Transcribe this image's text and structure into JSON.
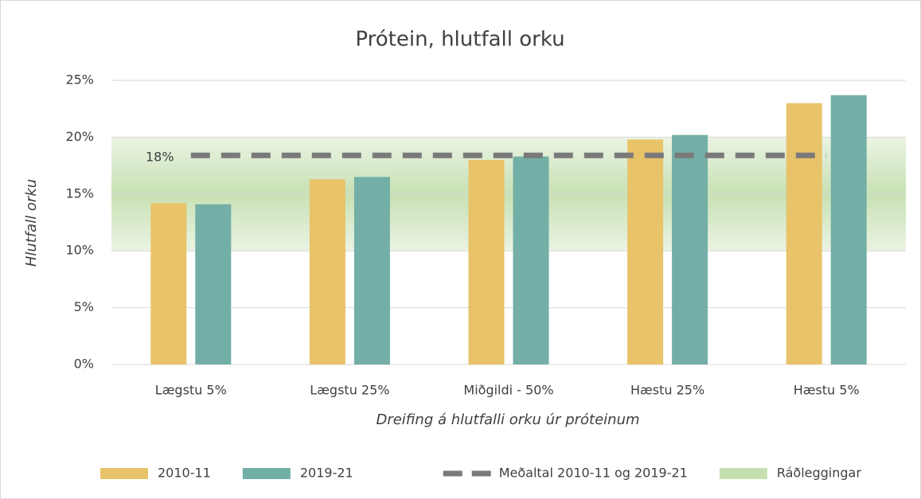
{
  "chart_data": {
    "type": "bar",
    "title": "Prótein, hlutfall orku",
    "x_label": "Dreifing á hlutfalli orku úr próteinum",
    "y_label": "Hlutfall orku",
    "categories": [
      "Lægstu 5%",
      "Lægstu 25%",
      "Miðgildi - 50%",
      "Hæstu 25%",
      "Hæstu 5%"
    ],
    "series": [
      {
        "name": "2010-11",
        "color": "#e8c36a",
        "values": [
          14.2,
          16.3,
          18.0,
          19.8,
          23.0
        ]
      },
      {
        "name": "2019-21",
        "color": "#73afa6",
        "values": [
          14.1,
          16.5,
          18.3,
          20.2,
          23.7
        ]
      }
    ],
    "reference_line": {
      "name": "Meðaltal 2010-11 og 2019-21",
      "value": 18.4,
      "value_label": "18%",
      "color": "#7a7a7a"
    },
    "band": {
      "name": "Ráðleggingar",
      "range": [
        10,
        20
      ],
      "color": "#c5dfb0"
    },
    "ylim": [
      0,
      25
    ],
    "yticks": [
      {
        "value": 0,
        "label": "0%"
      },
      {
        "value": 5,
        "label": "5%"
      },
      {
        "value": 10,
        "label": "10%"
      },
      {
        "value": 15,
        "label": "15%"
      },
      {
        "value": 20,
        "label": "20%"
      },
      {
        "value": 25,
        "label": "25%"
      }
    ],
    "grid": true,
    "legend": "bottom"
  }
}
